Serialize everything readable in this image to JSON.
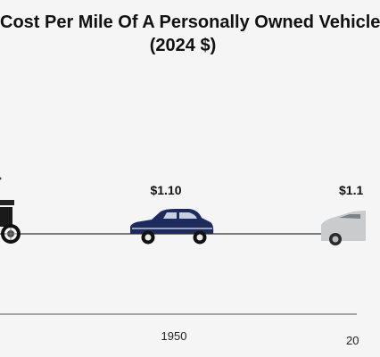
{
  "chart_data": {
    "type": "line",
    "title": "Cost Per Mile Of A Personally Owned Vehicle",
    "subtitle": "(2024 $)",
    "xlabel": "",
    "ylabel": "",
    "x": [
      "1950",
      "20"
    ],
    "series": [
      {
        "values": [
          1.1,
          1.1
        ],
        "labels": [
          "$1.10",
          "$1.1"
        ]
      }
    ],
    "icons": [
      "vintage-car-icon",
      "1950s-sedan-icon",
      "modern-sedan-icon"
    ],
    "colors": {
      "background": "#f5f5f5",
      "line": "#333333",
      "sedan_1950s": "#1d2a5c",
      "modern_sedan": "#c9cbcd"
    },
    "grid": false,
    "legend": "none"
  }
}
